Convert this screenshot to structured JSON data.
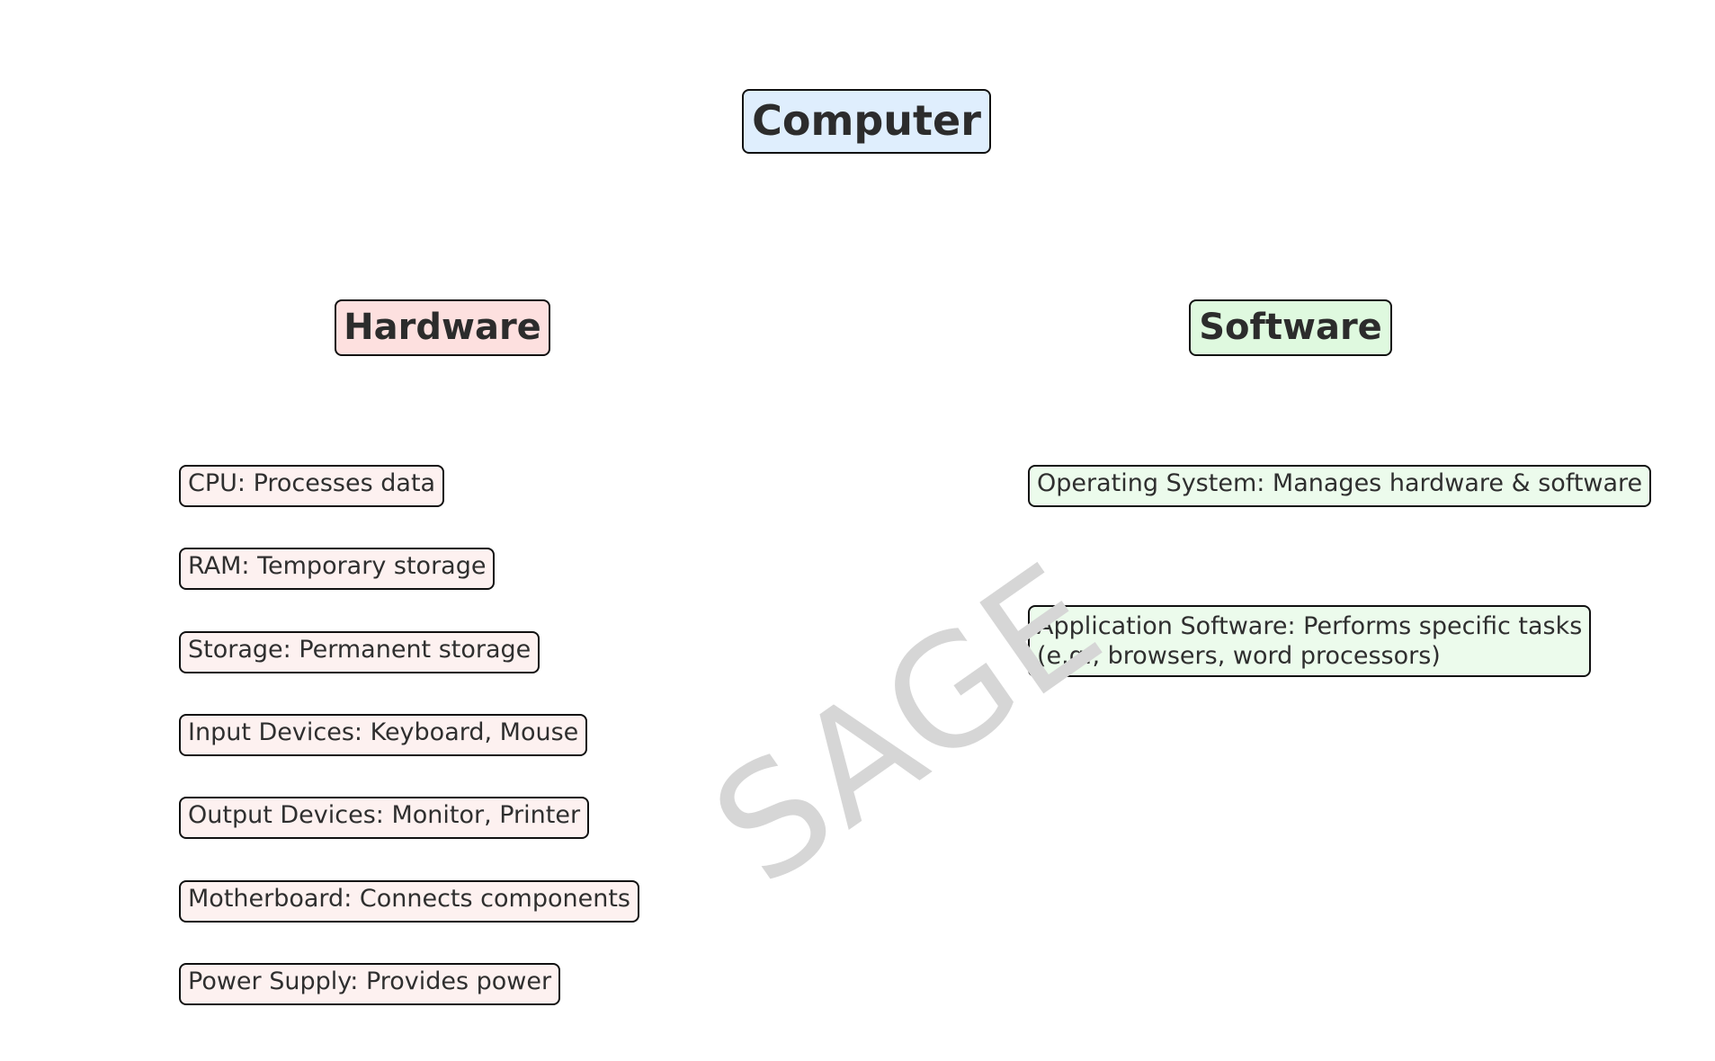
{
  "root": {
    "label": "Computer",
    "color": "#dfeefd"
  },
  "categories": [
    {
      "label": "Hardware",
      "color": "#fde0df"
    },
    {
      "label": "Software",
      "color": "#dff9df"
    }
  ],
  "hardware_items": [
    "CPU: Processes data",
    "RAM: Temporary storage",
    "Storage: Permanent storage",
    "Input Devices: Keyboard, Mouse",
    "Output Devices: Monitor, Printer",
    "Motherboard: Connects components",
    "Power Supply: Provides power"
  ],
  "software_items": [
    "Operating System: Manages hardware & software",
    "Application Software: Performs specific tasks\n(e.g., browsers, word processors)"
  ],
  "watermark": "SAGE"
}
